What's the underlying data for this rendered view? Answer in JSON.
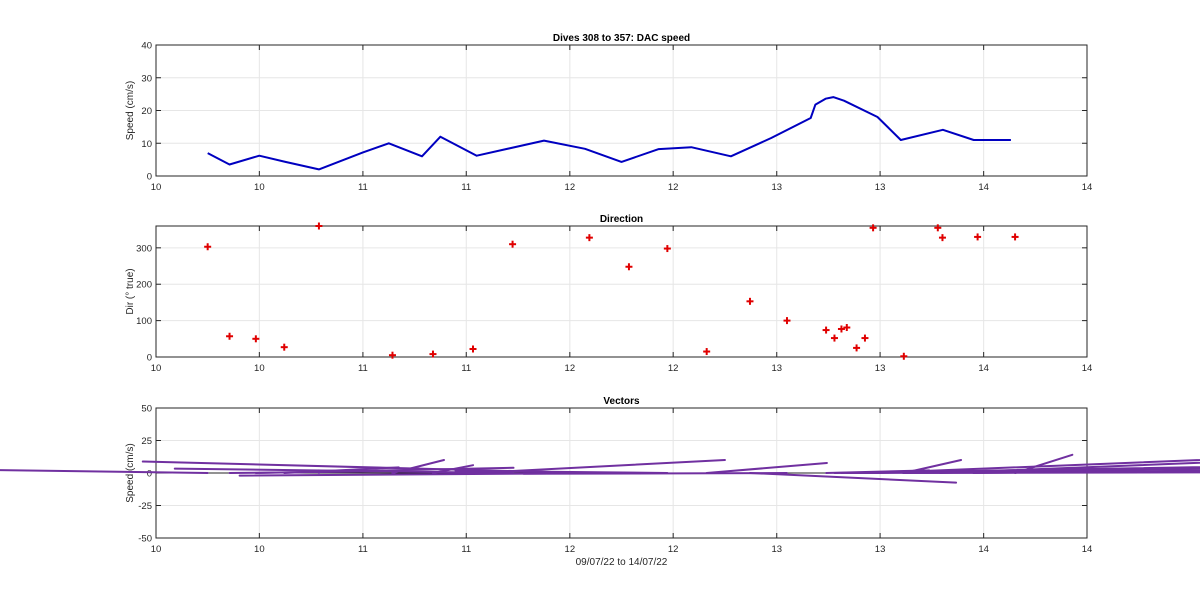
{
  "chart_data": [
    {
      "type": "line",
      "title": "Dives 308 to 357: DAC speed",
      "ylabel": "Speed (cm/s)",
      "xlabel": "",
      "xlim": [
        10,
        14
      ],
      "ylim": [
        0,
        40
      ],
      "xticks": [
        10,
        10.444,
        10.889,
        11.333,
        11.778,
        12.222,
        12.667,
        13.111,
        13.556,
        14
      ],
      "xticklabels": [
        "10",
        "10",
        "11",
        "11",
        "12",
        "12",
        "13",
        "13",
        "14",
        "14"
      ],
      "yticks": [
        0,
        10,
        20,
        30,
        40
      ],
      "grid": true,
      "color": "#0000c0",
      "x": [
        10.222,
        10.316,
        10.444,
        10.556,
        10.7,
        10.889,
        11.0,
        11.143,
        11.222,
        11.378,
        11.667,
        11.843,
        12.0,
        12.16,
        12.3,
        12.47,
        12.643,
        12.813,
        12.833,
        12.877,
        12.91,
        12.956,
        13.1,
        13.2,
        13.381,
        13.513,
        13.673
      ],
      "y": [
        7,
        3.5,
        6.2,
        4.3,
        2,
        7.2,
        10,
        6,
        12,
        6.2,
        10.8,
        8.3,
        4.3,
        8.2,
        8.8,
        6,
        11.6,
        17.7,
        21.8,
        23.6,
        24.1,
        23,
        18,
        11,
        14.1,
        11,
        11
      ],
      "series_name": ""
    },
    {
      "type": "scatter",
      "title": "Direction",
      "ylabel": "Dir (° true)",
      "xlabel": "",
      "xlim": [
        10,
        14
      ],
      "ylim": [
        0,
        360
      ],
      "xticks": [
        10,
        10.444,
        10.889,
        11.333,
        11.778,
        12.222,
        12.667,
        13.111,
        13.556,
        14
      ],
      "xticklabels": [
        "10",
        "10",
        "11",
        "11",
        "12",
        "12",
        "13",
        "13",
        "14",
        "14"
      ],
      "yticks": [
        0,
        100,
        200,
        300
      ],
      "grid": true,
      "marker": "+",
      "color": "#e00000",
      "x": [
        10.222,
        10.316,
        10.429,
        10.551,
        10.7,
        11.016,
        11.19,
        11.362,
        11.532,
        11.862,
        12.032,
        12.197,
        12.366,
        12.552,
        12.711,
        12.879,
        13.046,
        13.213,
        12.915,
        12.945,
        12.968,
        13.01,
        13.081,
        13.359,
        13.379,
        13.53,
        13.691
      ],
      "y": [
        303,
        57,
        50,
        27,
        360,
        5,
        8,
        22,
        310,
        328,
        248,
        298,
        15,
        153,
        100,
        74,
        52,
        2,
        52,
        77,
        81,
        25,
        355,
        355,
        328,
        330,
        330
      ]
    },
    {
      "type": "vector",
      "title": "Vectors",
      "ylabel": "Speed (cm/s)",
      "xlabel": "09/07/22 to 14/07/22",
      "xlim": [
        10,
        14
      ],
      "ylim": [
        -50,
        50
      ],
      "xticks": [
        10,
        10.444,
        10.889,
        11.333,
        11.778,
        12.222,
        12.667,
        13.111,
        13.556,
        14
      ],
      "xticklabels": [
        "10",
        "10",
        "11",
        "11",
        "12",
        "12",
        "13",
        "13",
        "14",
        "14"
      ],
      "yticks": [
        -50,
        -25,
        0,
        25,
        50
      ],
      "grid": true,
      "color": "#7030a0",
      "x": [
        10.222,
        10.316,
        10.429,
        10.551,
        10.7,
        11.016,
        11.19,
        11.362,
        11.532,
        11.862,
        12.032,
        12.197,
        12.366,
        12.552,
        12.711,
        12.879,
        13.046,
        13.213,
        13.37,
        13.512,
        13.691,
        12.915,
        12.945,
        12.968,
        13.01,
        13.081,
        13.21
      ],
      "u": [
        -5.8,
        2.9,
        4.5,
        2,
        0,
        0.9,
        0.7,
        4.4,
        -5.9,
        -7.8,
        -6.8,
        -3.7,
        2.1,
        3.6,
        -4.6,
        1.8,
        11,
        1,
        11.5,
        8.5,
        1,
        17,
        14,
        23,
        17,
        8,
        23
      ],
      "v": [
        3.5,
        1.5,
        4,
        4.3,
        2,
        10,
        6,
        10,
        3.4,
        8.8,
        -2,
        1.7,
        7.7,
        -7.4,
        -0.6,
        2,
        7,
        10,
        20,
        4,
        14,
        8.4,
        10,
        3.1,
        11,
        14,
        2
      ]
    }
  ]
}
